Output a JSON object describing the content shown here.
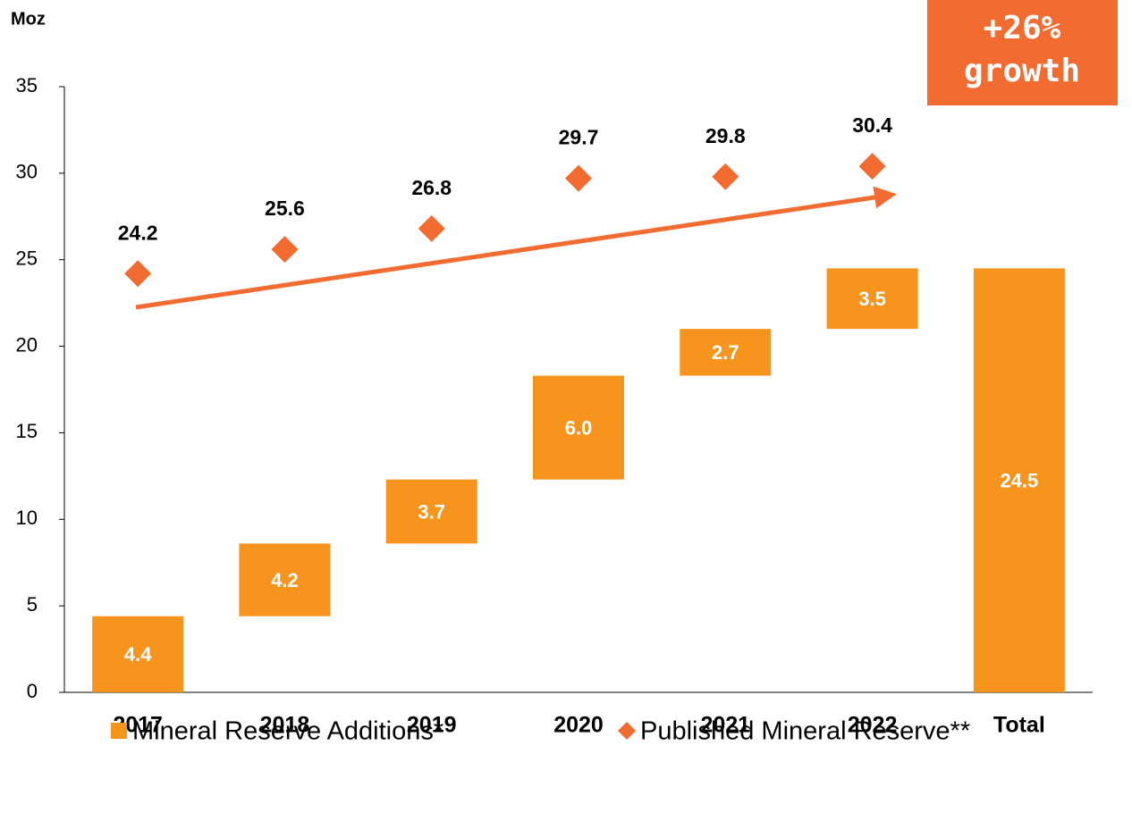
{
  "chart_data": {
    "type": "waterfall",
    "y_label": "Moz",
    "annotation": [
      "+26%",
      "growth"
    ],
    "categories": [
      "2017",
      "2018",
      "2019",
      "2020",
      "2021",
      "2022",
      "Total"
    ],
    "series": [
      {
        "name": "Mineral Reserve Additions*",
        "color": "#f7941d",
        "values": [
          4.4,
          4.2,
          3.7,
          6.0,
          2.7,
          3.5,
          24.5
        ],
        "value_labels": [
          "4.4",
          "4.2",
          "3.7",
          "6.0",
          "2.7",
          "3.5",
          "24.5"
        ]
      },
      {
        "name": "Published Mineral Reserve**",
        "color": "#f26b31",
        "values": [
          24.2,
          25.6,
          26.8,
          29.7,
          29.8,
          30.4,
          null
        ]
      }
    ],
    "ylim": [
      0,
      35
    ],
    "yticks": [
      0,
      5,
      10,
      15,
      20,
      25,
      30,
      35
    ],
    "grid": false
  }
}
